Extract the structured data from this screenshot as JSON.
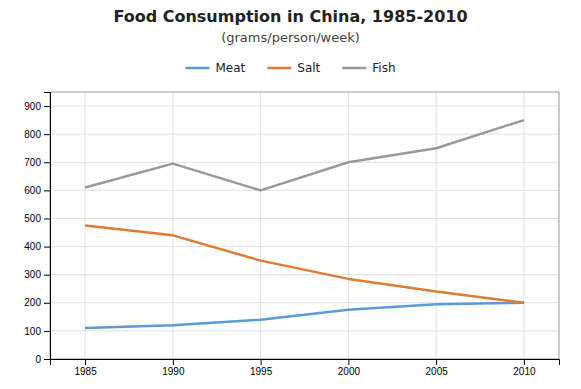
{
  "chart_data": {
    "type": "line",
    "title": "Food Consumption in China, 1985-2010",
    "subtitle": "(grams/person/week)",
    "x": [
      1985,
      1990,
      1995,
      2000,
      2005,
      2010
    ],
    "series": [
      {
        "name": "Meat",
        "color": "#5b9bd5",
        "values": [
          110,
          120,
          140,
          175,
          195,
          200
        ]
      },
      {
        "name": "Salt",
        "color": "#e07b30",
        "values": [
          475,
          440,
          350,
          285,
          240,
          200
        ]
      },
      {
        "name": "Fish",
        "color": "#999999",
        "values": [
          610,
          695,
          600,
          700,
          750,
          850
        ]
      }
    ],
    "xlim": [
      1983,
      2012
    ],
    "xticks": [
      1985,
      1990,
      1995,
      2000,
      2005,
      2010
    ],
    "ylim": [
      0,
      950
    ],
    "yticks": [
      0,
      100,
      200,
      300,
      400,
      500,
      600,
      700,
      800,
      900
    ],
    "grid": true,
    "legend": "top"
  }
}
